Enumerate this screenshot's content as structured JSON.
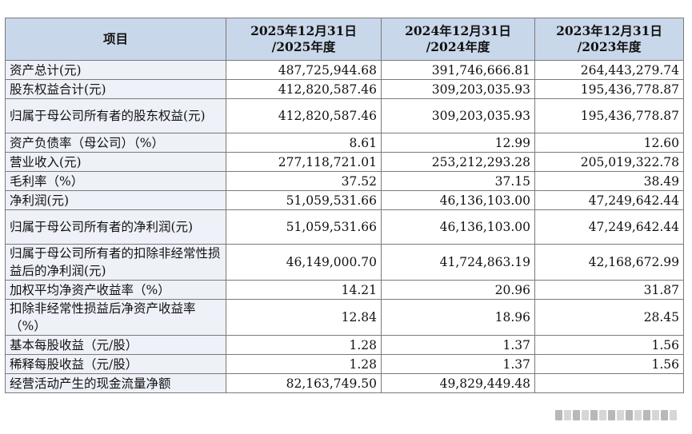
{
  "table": {
    "headers": [
      {
        "lines": [
          "项目"
        ]
      },
      {
        "lines": [
          "2025年12月31日",
          "/2025年度"
        ]
      },
      {
        "lines": [
          "2024年12月31日",
          "/2024年度"
        ]
      },
      {
        "lines": [
          "2023年12月31日",
          "/2023年度"
        ]
      }
    ],
    "rows": [
      {
        "label": "资产总计(元)",
        "v2025": "487,725,944.68",
        "v2024": "391,746,666.81",
        "v2023": "264,443,279.74"
      },
      {
        "label": "股东权益合计(元)",
        "v2025": "412,820,587.46",
        "v2024": "309,203,035.93",
        "v2023": "195,436,778.87"
      },
      {
        "label": "归属于母公司所有者的股东权益(元)",
        "v2025": "412,820,587.46",
        "v2024": "309,203,035.93",
        "v2023": "195,436,778.87"
      },
      {
        "label": "资产负债率（母公司）（%）",
        "v2025": "8.61",
        "v2024": "12.99",
        "v2023": "12.60"
      },
      {
        "label": "营业收入(元)",
        "v2025": "277,118,721.01",
        "v2024": "253,212,293.28",
        "v2023": "205,019,322.78"
      },
      {
        "label": "毛利率（%）",
        "v2025": "37.52",
        "v2024": "37.15",
        "v2023": "38.49"
      },
      {
        "label": "净利润(元)",
        "v2025": "51,059,531.66",
        "v2024": "46,136,103.00",
        "v2023": "47,249,642.44"
      },
      {
        "label": "归属于母公司所有者的净利润(元)",
        "v2025": "51,059,531.66",
        "v2024": "46,136,103.00",
        "v2023": "47,249,642.44"
      },
      {
        "label": "归属于母公司所有者的扣除非经常性损益后的净利润(元)",
        "v2025": "46,149,000.70",
        "v2024": "41,724,863.19",
        "v2023": "42,168,672.99"
      },
      {
        "label": "加权平均净资产收益率（%）",
        "v2025": "14.21",
        "v2024": "20.96",
        "v2023": "31.87"
      },
      {
        "label": "扣除非经常性损益后净资产收益率（%）",
        "v2025": "12.84",
        "v2024": "18.96",
        "v2023": "28.45"
      },
      {
        "label": "基本每股收益（元/股）",
        "v2025": "1.28",
        "v2024": "1.37",
        "v2023": "1.56"
      },
      {
        "label": "稀释每股收益（元/股）",
        "v2025": "1.28",
        "v2024": "1.37",
        "v2023": "1.56"
      },
      {
        "label": "经营活动产生的现金流量净额",
        "v2025": "82,163,749.50",
        "v2024": "49,829,449.48",
        "v2023": ""
      }
    ]
  }
}
